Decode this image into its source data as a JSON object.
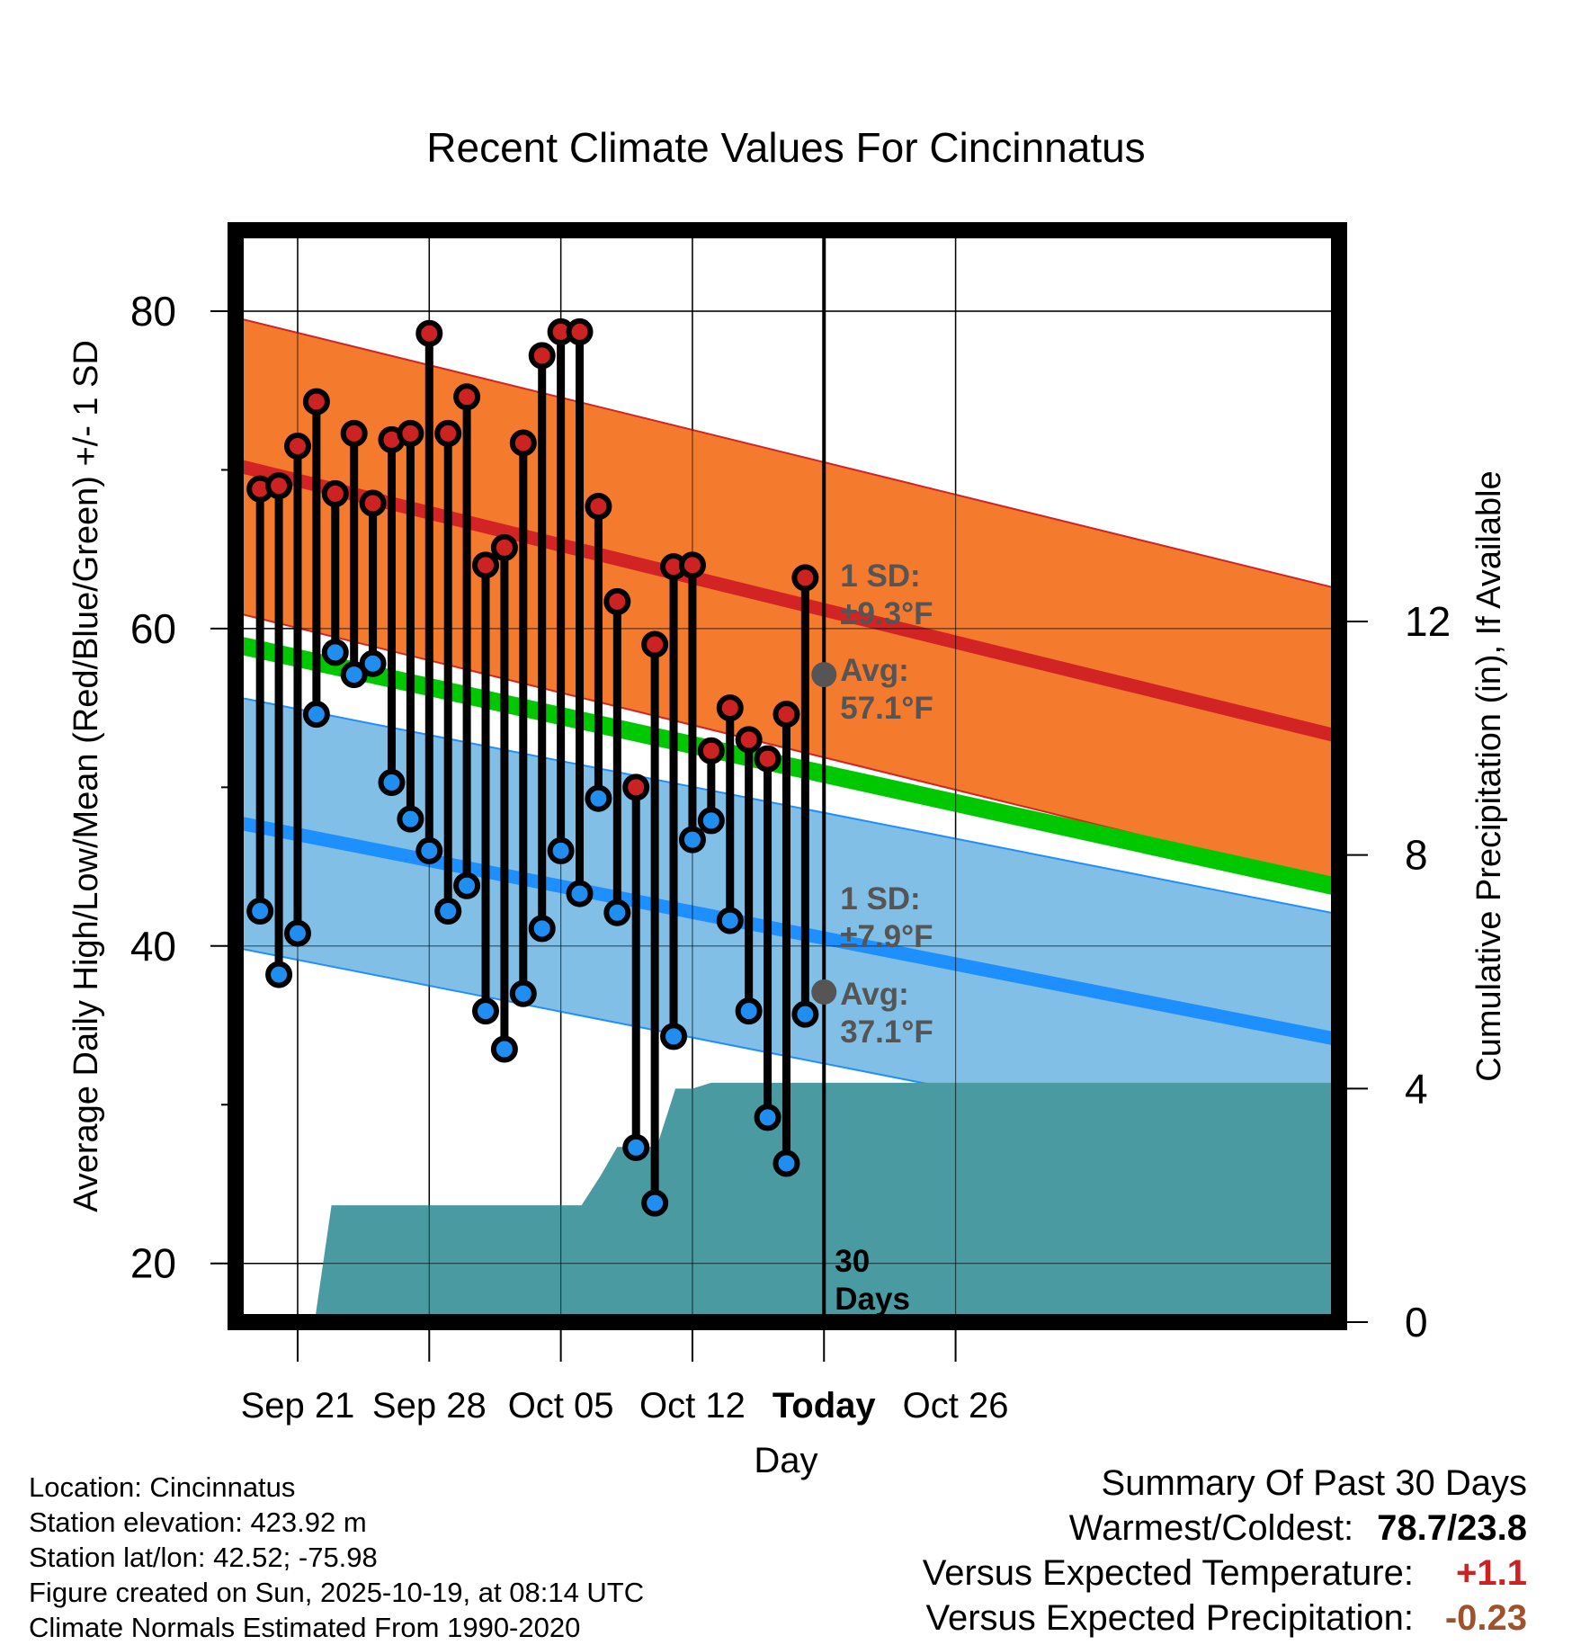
{
  "chart_data": {
    "type": "range-bar-with-bands",
    "title": "Recent Climate Values For Cincinnatus",
    "xlabel": "Day",
    "ylabel": "Average Daily High/Low/Mean (Red/Blue/Green) +/- 1 SD",
    "y2label": "Cumulative Precipitation (in), If Available",
    "ylim": [
      16.3,
      85.1
    ],
    "y2lim": [
      0,
      18.7
    ],
    "yticks": [
      80,
      60,
      40,
      20
    ],
    "y2ticks": [
      12,
      8,
      4,
      0
    ],
    "xlim": [
      -3.3,
      55.4
    ],
    "x_ticks": [
      {
        "pos": 0,
        "label": "Sep 21",
        "bold": false
      },
      {
        "pos": 7,
        "label": "Sep 28",
        "bold": false
      },
      {
        "pos": 14,
        "label": "Oct 05",
        "bold": false
      },
      {
        "pos": 21,
        "label": "Oct 12",
        "bold": false
      },
      {
        "pos": 28,
        "label": "Today",
        "bold": true
      },
      {
        "pos": 35,
        "label": "Oct 26",
        "bold": false
      }
    ],
    "today_pos": 28,
    "days": [
      -2,
      -1,
      0,
      1,
      2,
      3,
      4,
      5,
      6,
      7,
      8,
      9,
      10,
      11,
      12,
      13,
      14,
      15,
      16,
      17,
      18,
      19,
      20,
      21,
      22,
      23,
      24,
      25,
      26,
      27
    ],
    "highs": [
      68.8,
      69.0,
      71.5,
      74.3,
      68.5,
      72.3,
      67.9,
      71.9,
      72.3,
      78.6,
      72.3,
      74.6,
      64.0,
      65.1,
      71.7,
      77.2,
      78.7,
      78.7,
      67.7,
      61.7,
      50.0,
      59.0,
      63.9,
      64.0,
      52.3,
      55.0,
      53.0,
      51.8,
      54.6,
      63.2
    ],
    "lows": [
      42.2,
      38.2,
      40.8,
      54.6,
      58.5,
      57.1,
      57.8,
      50.3,
      48.0,
      46.0,
      42.2,
      43.8,
      35.9,
      33.5,
      37.0,
      41.1,
      46.0,
      43.3,
      49.3,
      42.1,
      27.3,
      23.8,
      34.3,
      46.7,
      47.9,
      41.6,
      35.9,
      29.2,
      26.3,
      35.7
    ],
    "normal_high": {
      "start": 70.3,
      "end": 53.2,
      "today_value": 57.1
    },
    "normal_low": {
      "start": 47.8,
      "end": 34.1,
      "today_value": 37.1
    },
    "normal_mean": {
      "start": 59.0,
      "end": 43.7
    },
    "high_sd": 9.3,
    "low_sd": 7.9,
    "precip_cumulative": [
      {
        "day": -3.3,
        "value": 0
      },
      {
        "day": 0.9,
        "value": 0
      },
      {
        "day": 1.8,
        "value": 2.0
      },
      {
        "day": 15.1,
        "value": 2.0
      },
      {
        "day": 16.1,
        "value": 2.5
      },
      {
        "day": 17.0,
        "value": 3.0
      },
      {
        "day": 19.1,
        "value": 3.0
      },
      {
        "day": 20.1,
        "value": 4.0
      },
      {
        "day": 21.0,
        "value": 4.0
      },
      {
        "day": 22.0,
        "value": 4.1
      },
      {
        "day": 55.4,
        "value": 4.1
      }
    ],
    "annotations": {
      "high_sd_label": [
        "1 SD:",
        "±9.3°F"
      ],
      "high_avg_label": [
        "Avg:",
        "57.1°F"
      ],
      "low_sd_label": [
        "1 SD:",
        "±7.9°F"
      ],
      "low_avg_label": [
        "Avg:",
        "37.1°F"
      ],
      "days_label": [
        "30",
        "Days"
      ]
    },
    "colors": {
      "high_band": "#f47a2e",
      "high_line": "#d22424",
      "low_band": "#82bfe6",
      "low_line": "#1e8fff",
      "mean_line": "#00c800",
      "precip": "#4a9aa2",
      "high_marker": "#cc2222",
      "low_marker": "#1f8ef0",
      "annotation_text": "#555555"
    }
  },
  "footer": {
    "location": "Location: Cincinnatus",
    "elevation": "Station elevation: 423.92 m",
    "latlon": "Station lat/lon: 42.52; -75.98",
    "created": "Figure created on Sun, 2025-10-19, at 08:14 UTC",
    "normals": "Climate Normals Estimated From 1990-2020"
  },
  "summary": {
    "title": "Summary Of Past 30 Days",
    "warm_cold_label": "Warmest/Coldest:",
    "warm_cold_value": "78.7/23.8",
    "temp_label": "Versus Expected Temperature:",
    "temp_value": "+1.1",
    "temp_color": "#cc2222",
    "precip_label": "Versus Expected Precipitation:",
    "precip_value": "-0.23",
    "precip_color": "#a0522d"
  }
}
